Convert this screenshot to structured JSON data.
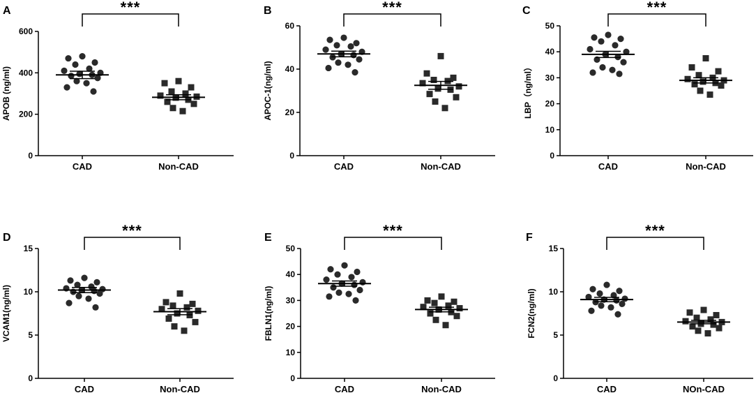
{
  "chart_data": [
    {
      "type": "scatter",
      "panel": "A",
      "ylabel": "APOB (ng/ml)",
      "ylim": [
        0,
        600
      ],
      "yticks": [
        "0",
        "200",
        "400",
        "600"
      ],
      "categories": [
        "CAD",
        "Non-CAD"
      ],
      "significance": "***",
      "series": [
        {
          "name": "CAD",
          "marker": "circle",
          "mean": 390,
          "sem": 18,
          "values": [
            480,
            470,
            450,
            440,
            420,
            410,
            400,
            395,
            390,
            385,
            375,
            360,
            350,
            330,
            310
          ]
        },
        {
          "name": "Non-CAD",
          "marker": "square",
          "mean": 282,
          "sem": 12,
          "values": [
            360,
            350,
            330,
            310,
            300,
            290,
            285,
            280,
            270,
            260,
            250,
            230,
            215
          ]
        }
      ]
    },
    {
      "type": "scatter",
      "panel": "B",
      "ylabel": "APOC-1(ng/ml)",
      "ylim": [
        0,
        60
      ],
      "yticks": [
        "0",
        "20",
        "40",
        "60"
      ],
      "categories": [
        "CAD",
        "Non-CAD"
      ],
      "significance": "***",
      "series": [
        {
          "name": "CAD",
          "marker": "circle",
          "mean": 47,
          "sem": 1.3,
          "values": [
            54.5,
            53.5,
            52,
            51,
            50.5,
            49,
            48,
            47,
            46.5,
            45.5,
            44.5,
            43,
            42,
            40.5,
            38.5
          ]
        },
        {
          "name": "Non-CAD",
          "marker": "square",
          "mean": 32.5,
          "sem": 1.8,
          "values": [
            46,
            38,
            36,
            35,
            34.5,
            33.5,
            32,
            31,
            30.5,
            28.5,
            27,
            25,
            22
          ]
        }
      ]
    },
    {
      "type": "scatter",
      "panel": "C",
      "ylabel": "LBP（ng/ml）",
      "ylim": [
        0,
        50
      ],
      "yticks": [
        "0",
        "10",
        "20",
        "30",
        "40",
        "50"
      ],
      "categories": [
        "CAD",
        "Non-CAD"
      ],
      "significance": "***",
      "series": [
        {
          "name": "CAD",
          "marker": "circle",
          "mean": 39,
          "sem": 1.2,
          "values": [
            46.5,
            45.5,
            45,
            44,
            42.5,
            41,
            40,
            39,
            38,
            37,
            36,
            34,
            33,
            32,
            31.5
          ]
        },
        {
          "name": "Non-CAD",
          "marker": "square",
          "mean": 29,
          "sem": 1,
          "values": [
            37.5,
            34,
            32.5,
            31,
            30,
            29.5,
            29,
            28.5,
            28,
            27.5,
            27,
            25,
            23.5
          ]
        }
      ]
    },
    {
      "type": "scatter",
      "panel": "D",
      "ylabel": "VCAM1(ng/ml)",
      "ylim": [
        0,
        15
      ],
      "yticks": [
        "0",
        "5",
        "10",
        "15"
      ],
      "categories": [
        "CAD",
        "Non-CAD"
      ],
      "significance": "***",
      "series": [
        {
          "name": "CAD",
          "marker": "circle",
          "mean": 10.2,
          "sem": 0.3,
          "values": [
            11.6,
            11.3,
            11.1,
            10.8,
            10.6,
            10.4,
            10.3,
            10.2,
            10.1,
            10,
            9.8,
            9.5,
            9.2,
            8.7,
            8.2
          ]
        },
        {
          "name": "Non-CAD",
          "marker": "square",
          "mean": 7.7,
          "sem": 0.35,
          "values": [
            9.8,
            8.8,
            8.6,
            8.4,
            8.2,
            8,
            7.8,
            7.5,
            7.3,
            6.9,
            6.5,
            6,
            5.5
          ]
        }
      ]
    },
    {
      "type": "scatter",
      "panel": "E",
      "ylabel": "FBLN1(ng/ml)",
      "ylim": [
        0,
        50
      ],
      "yticks": [
        "0",
        "10",
        "20",
        "30",
        "40",
        "50"
      ],
      "categories": [
        "CAD",
        "Non-CAD"
      ],
      "significance": "***",
      "series": [
        {
          "name": "CAD",
          "marker": "circle",
          "mean": 36.5,
          "sem": 1,
          "values": [
            43.5,
            42,
            41,
            40,
            39,
            38,
            37,
            36.5,
            36,
            35,
            34,
            33,
            32.5,
            31.5,
            30
          ]
        },
        {
          "name": "Non-CAD",
          "marker": "square",
          "mean": 26.5,
          "sem": 0.9,
          "values": [
            31.5,
            30,
            29.5,
            29,
            28,
            27.5,
            27,
            26.5,
            25.5,
            25,
            24,
            22.5,
            20.5
          ]
        }
      ]
    },
    {
      "type": "scatter",
      "panel": "F",
      "ylabel": "FCN2(ng/ml)",
      "ylim": [
        0,
        15
      ],
      "yticks": [
        "0",
        "5",
        "10",
        "15"
      ],
      "categories": [
        "CAD",
        "NOn-CAD"
      ],
      "significance": "***",
      "series": [
        {
          "name": "CAD",
          "marker": "circle",
          "mean": 9.1,
          "sem": 0.25,
          "values": [
            10.8,
            10.3,
            10.1,
            9.8,
            9.6,
            9.4,
            9.2,
            9.1,
            9,
            8.8,
            8.6,
            8.4,
            8.2,
            7.8,
            7.4
          ]
        },
        {
          "name": "NOn-CAD",
          "marker": "square",
          "mean": 6.5,
          "sem": 0.2,
          "values": [
            7.9,
            7.6,
            7.3,
            7,
            6.8,
            6.6,
            6.5,
            6.3,
            6.2,
            6,
            5.8,
            5.5,
            5.2
          ]
        }
      ]
    }
  ]
}
